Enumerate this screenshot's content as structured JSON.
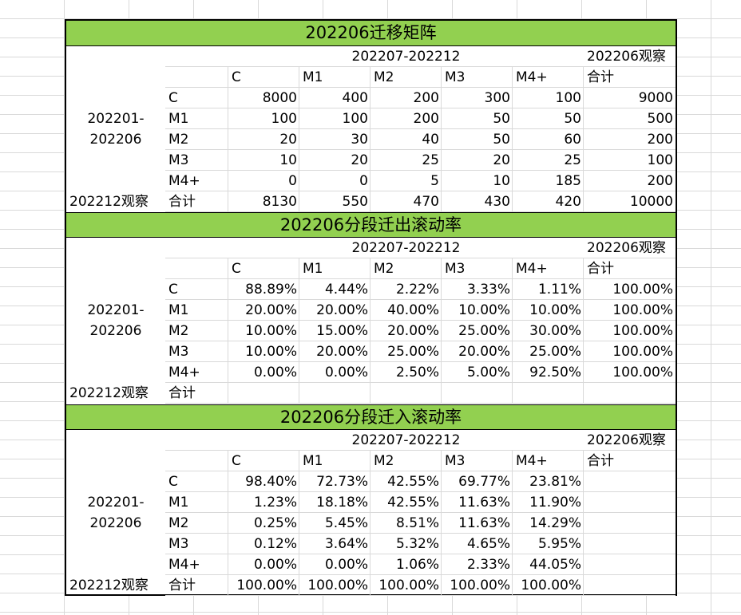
{
  "sections": [
    {
      "title": "202206迁移矩阵",
      "period_header": "202207-202212",
      "obs_header": "202206观察",
      "col_headers": [
        "C",
        "M1",
        "M2",
        "M3",
        "M4+"
      ],
      "total_col_label": "合计",
      "row_group_label": "202201-\n202206",
      "row_group_line1": "202201-",
      "row_group_line2": "202206",
      "footer_label": "202212观察",
      "total_row_label": "合计",
      "rows": [
        {
          "label": "C",
          "values": [
            "8000",
            "400",
            "200",
            "300",
            "100"
          ],
          "total": "9000"
        },
        {
          "label": "M1",
          "values": [
            "100",
            "100",
            "200",
            "50",
            "50"
          ],
          "total": "500"
        },
        {
          "label": "M2",
          "values": [
            "20",
            "30",
            "40",
            "50",
            "60"
          ],
          "total": "200"
        },
        {
          "label": "M3",
          "values": [
            "10",
            "20",
            "25",
            "20",
            "25"
          ],
          "total": "100"
        },
        {
          "label": "M4+",
          "values": [
            "0",
            "0",
            "5",
            "10",
            "185"
          ],
          "total": "200"
        }
      ],
      "total_row": [
        "8130",
        "550",
        "470",
        "430",
        "420",
        "10000"
      ]
    },
    {
      "title": "202206分段迁出滚动率",
      "period_header": "202207-202212",
      "obs_header": "202206观察",
      "col_headers": [
        "C",
        "M1",
        "M2",
        "M3",
        "M4+"
      ],
      "total_col_label": "合计",
      "row_group_line1": "202201-",
      "row_group_line2": "202206",
      "footer_label": "202212观察",
      "total_row_label": "合计",
      "rows": [
        {
          "label": "C",
          "values": [
            "88.89%",
            "4.44%",
            "2.22%",
            "3.33%",
            "1.11%"
          ],
          "total": "100.00%"
        },
        {
          "label": "M1",
          "values": [
            "20.00%",
            "20.00%",
            "40.00%",
            "10.00%",
            "10.00%"
          ],
          "total": "100.00%"
        },
        {
          "label": "M2",
          "values": [
            "10.00%",
            "15.00%",
            "20.00%",
            "25.00%",
            "30.00%"
          ],
          "total": "100.00%"
        },
        {
          "label": "M3",
          "values": [
            "10.00%",
            "20.00%",
            "25.00%",
            "20.00%",
            "25.00%"
          ],
          "total": "100.00%"
        },
        {
          "label": "M4+",
          "values": [
            "0.00%",
            "0.00%",
            "2.50%",
            "5.00%",
            "92.50%"
          ],
          "total": "100.00%"
        }
      ],
      "total_row": [
        "",
        "",
        "",
        "",
        "",
        ""
      ]
    },
    {
      "title": "202206分段迁入滚动率",
      "period_header": "202207-202212",
      "obs_header": "202206观察",
      "col_headers": [
        "C",
        "M1",
        "M2",
        "M3",
        "M4+"
      ],
      "total_col_label": "合计",
      "row_group_line1": "202201-",
      "row_group_line2": "202206",
      "footer_label": "202212观察",
      "total_row_label": "合计",
      "rows": [
        {
          "label": "C",
          "values": [
            "98.40%",
            "72.73%",
            "42.55%",
            "69.77%",
            "23.81%"
          ],
          "total": ""
        },
        {
          "label": "M1",
          "values": [
            "1.23%",
            "18.18%",
            "42.55%",
            "11.63%",
            "11.90%"
          ],
          "total": ""
        },
        {
          "label": "M2",
          "values": [
            "0.25%",
            "5.45%",
            "8.51%",
            "11.63%",
            "14.29%"
          ],
          "total": ""
        },
        {
          "label": "M3",
          "values": [
            "0.12%",
            "3.64%",
            "5.32%",
            "4.65%",
            "5.95%"
          ],
          "total": ""
        },
        {
          "label": "M4+",
          "values": [
            "0.00%",
            "0.00%",
            "1.06%",
            "2.33%",
            "44.05%"
          ],
          "total": ""
        }
      ],
      "total_row": [
        "100.00%",
        "100.00%",
        "100.00%",
        "100.00%",
        "100.00%",
        ""
      ]
    }
  ]
}
